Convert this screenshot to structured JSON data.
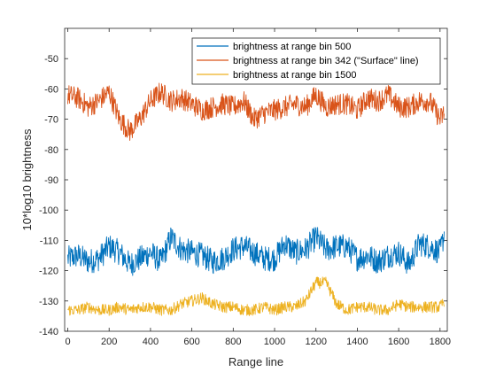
{
  "chart_data": {
    "type": "line",
    "xlabel": "Range line",
    "ylabel": "10*log10 brightness",
    "xlim": [
      -15,
      1835
    ],
    "ylim": [
      -140,
      -40
    ],
    "xticks": [
      "0",
      "200",
      "400",
      "600",
      "800",
      "1000",
      "1200",
      "1400",
      "1600",
      "1800"
    ],
    "yticks": [
      "-140",
      "-130",
      "-120",
      "-110",
      "-100",
      "-90",
      "-80",
      "-70",
      "-60",
      "-50"
    ],
    "legend_location": "top-right",
    "series": [
      {
        "name": "brightness at range bin 500",
        "color": "#0072BD",
        "x": [
          0,
          50,
          100,
          150,
          200,
          250,
          300,
          350,
          400,
          450,
          500,
          550,
          600,
          650,
          700,
          750,
          800,
          850,
          900,
          950,
          1000,
          1050,
          1100,
          1150,
          1200,
          1250,
          1300,
          1350,
          1400,
          1450,
          1500,
          1550,
          1600,
          1650,
          1700,
          1750,
          1800,
          1820
        ],
        "y": [
          -116,
          -115,
          -117,
          -116,
          -112,
          -114,
          -118,
          -116,
          -114,
          -117,
          -109,
          -113,
          -114,
          -115,
          -117,
          -116,
          -113,
          -112,
          -114,
          -116,
          -116,
          -111,
          -114,
          -113,
          -109,
          -113,
          -112,
          -112,
          -116,
          -115,
          -117,
          -115,
          -114,
          -118,
          -111,
          -112,
          -114,
          -108
        ]
      },
      {
        "name": "brightness at range bin 342 (\"Surface\" line)",
        "color": "#D95319",
        "x": [
          0,
          50,
          100,
          150,
          200,
          250,
          300,
          350,
          400,
          450,
          500,
          550,
          600,
          650,
          700,
          750,
          800,
          850,
          900,
          950,
          1000,
          1050,
          1100,
          1150,
          1200,
          1250,
          1300,
          1350,
          1400,
          1450,
          1500,
          1550,
          1600,
          1650,
          1700,
          1750,
          1800,
          1820
        ],
        "y": [
          -62,
          -63,
          -66,
          -64,
          -61,
          -70,
          -74,
          -70,
          -64,
          -61,
          -64,
          -63,
          -65,
          -67,
          -66,
          -65,
          -66,
          -64,
          -70,
          -68,
          -67,
          -66,
          -65,
          -66,
          -62,
          -66,
          -65,
          -65,
          -67,
          -63,
          -64,
          -62,
          -66,
          -66,
          -64,
          -64,
          -70,
          -68
        ]
      },
      {
        "name": "brightness at range bin 1500",
        "color": "#EDB120",
        "x": [
          0,
          50,
          100,
          150,
          200,
          250,
          300,
          350,
          400,
          450,
          500,
          550,
          600,
          650,
          700,
          750,
          800,
          850,
          900,
          950,
          1000,
          1050,
          1100,
          1150,
          1200,
          1250,
          1300,
          1350,
          1400,
          1450,
          1500,
          1550,
          1600,
          1650,
          1700,
          1750,
          1800,
          1820
        ],
        "y": [
          -133,
          -133,
          -132,
          -133,
          -133,
          -132,
          -133,
          -132,
          -132,
          -133,
          -133,
          -131,
          -130,
          -129,
          -131,
          -132,
          -132,
          -133,
          -133,
          -132,
          -133,
          -132,
          -132,
          -130,
          -124,
          -124,
          -131,
          -133,
          -132,
          -132,
          -133,
          -133,
          -131,
          -132,
          -132,
          -132,
          -132,
          -130
        ]
      }
    ]
  }
}
